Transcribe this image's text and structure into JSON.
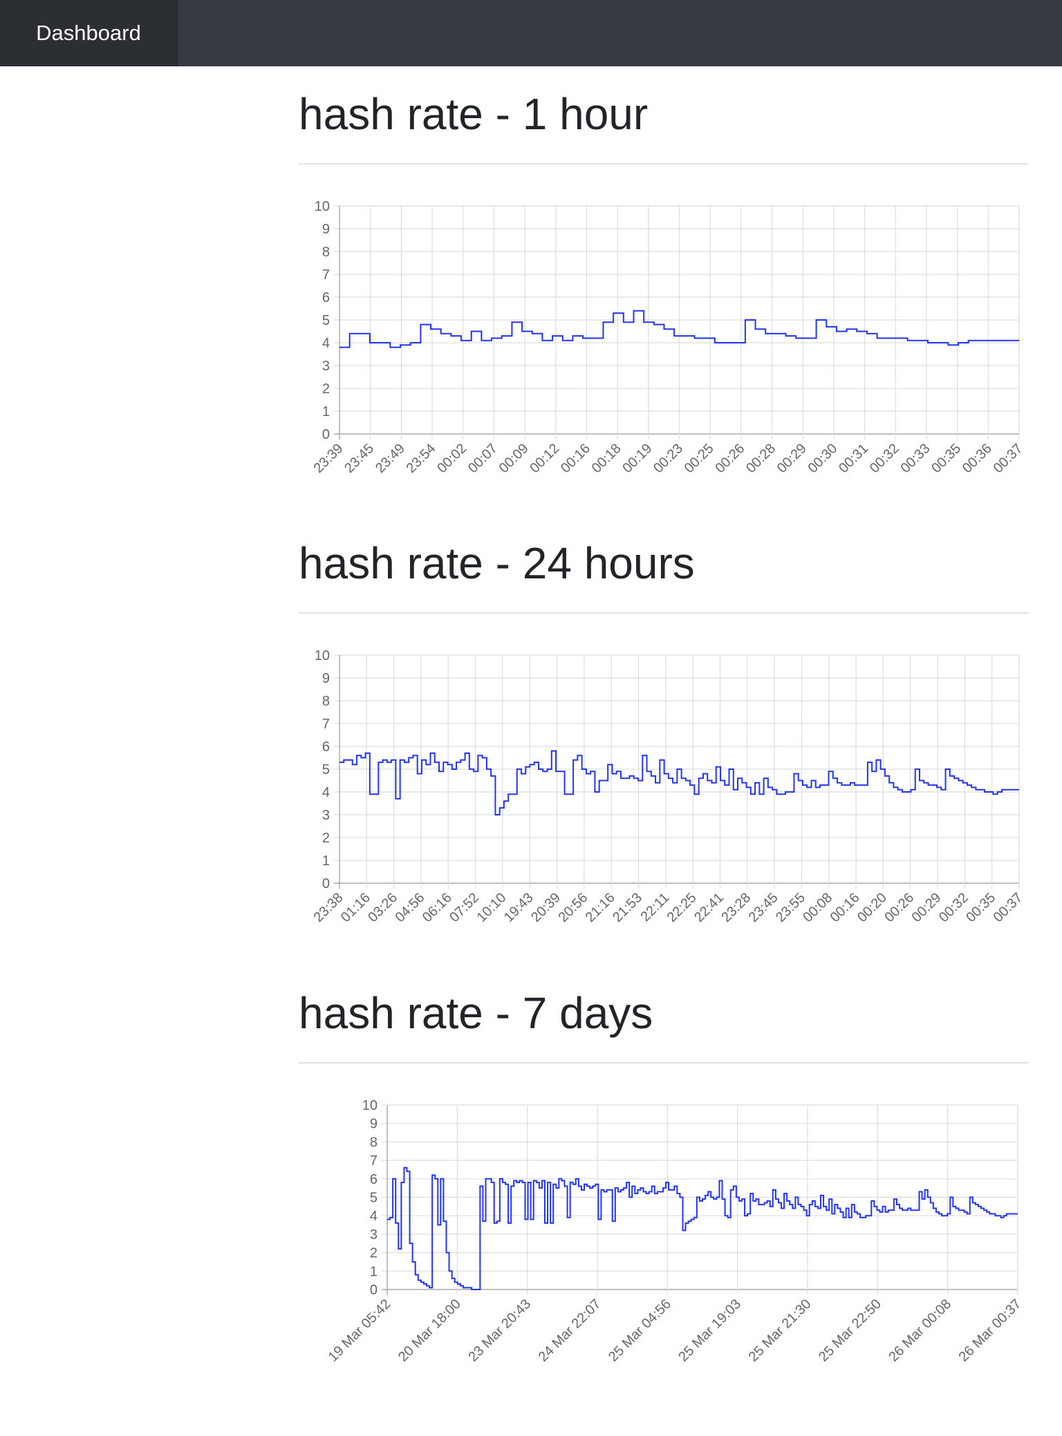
{
  "navbar": {
    "brand": "Dashboard"
  },
  "colors": {
    "navbar_bg": "#343a40",
    "brand_bg": "#2b2f33",
    "line": "#2233ee",
    "grid": "#dddddd",
    "axis_text": "#666666"
  },
  "sections": [
    {
      "title": "hash rate - 1 hour"
    },
    {
      "title": "hash rate - 24 hours"
    },
    {
      "title": "hash rate - 7 days"
    }
  ],
  "chart_data": [
    {
      "type": "line",
      "stepped": true,
      "grid": true,
      "ylim": [
        0,
        10
      ],
      "y_ticks": [
        "0",
        "1",
        "2",
        "3",
        "4",
        "5",
        "6",
        "7",
        "8",
        "9",
        "10"
      ],
      "x_tick_labels": [
        "23:39",
        "23:45",
        "23:49",
        "23:54",
        "00:02",
        "00:07",
        "00:09",
        "00:12",
        "00:16",
        "00:18",
        "00:19",
        "00:23",
        "00:25",
        "00:26",
        "00:28",
        "00:29",
        "00:30",
        "00:31",
        "00:32",
        "00:33",
        "00:35",
        "00:36",
        "00:37"
      ],
      "series": [
        {
          "values": [
            3.8,
            4.4,
            4.4,
            4.0,
            4.0,
            3.8,
            3.9,
            4.0,
            4.8,
            4.6,
            4.4,
            4.3,
            4.1,
            4.5,
            4.1,
            4.2,
            4.3,
            4.9,
            4.5,
            4.4,
            4.1,
            4.3,
            4.1,
            4.3,
            4.2,
            4.2,
            4.9,
            5.3,
            4.9,
            5.4,
            4.9,
            4.8,
            4.6,
            4.3,
            4.3,
            4.2,
            4.2,
            4.0,
            4.0,
            4.0,
            5.0,
            4.6,
            4.4,
            4.4,
            4.3,
            4.2,
            4.2,
            5.0,
            4.7,
            4.5,
            4.6,
            4.5,
            4.4,
            4.2,
            4.2,
            4.2,
            4.1,
            4.1,
            4.0,
            4.0,
            3.9,
            4.0,
            4.1,
            4.1,
            4.1,
            4.1,
            4.1
          ]
        }
      ]
    },
    {
      "type": "line",
      "stepped": true,
      "grid": true,
      "ylim": [
        0,
        10
      ],
      "y_ticks": [
        "0",
        "1",
        "2",
        "3",
        "4",
        "5",
        "6",
        "7",
        "8",
        "9",
        "10"
      ],
      "x_tick_labels": [
        "23:38",
        "01:16",
        "03:26",
        "04:56",
        "06:16",
        "07:52",
        "10:10",
        "19:43",
        "20:39",
        "20:56",
        "21:16",
        "21:53",
        "22:11",
        "22:25",
        "22:41",
        "23:28",
        "23:45",
        "23:55",
        "00:08",
        "00:16",
        "00:20",
        "00:26",
        "00:29",
        "00:32",
        "00:35",
        "00:37"
      ],
      "series": [
        {
          "values": [
            5.3,
            5.4,
            5.4,
            5.2,
            5.6,
            5.5,
            5.7,
            3.9,
            3.9,
            5.3,
            5.4,
            5.3,
            5.4,
            3.7,
            5.4,
            5.3,
            5.5,
            5.6,
            4.8,
            5.4,
            5.2,
            5.7,
            5.3,
            4.9,
            5.3,
            5.2,
            5.0,
            5.3,
            5.4,
            5.7,
            5.0,
            4.9,
            5.6,
            5.5,
            5.0,
            4.7,
            3.0,
            3.3,
            3.6,
            3.9,
            3.9,
            5.0,
            4.8,
            5.1,
            5.2,
            5.3,
            5.0,
            4.9,
            5.0,
            5.8,
            4.9,
            4.9,
            3.9,
            3.9,
            5.4,
            5.6,
            5.0,
            4.8,
            4.9,
            4.0,
            4.5,
            4.5,
            5.2,
            4.8,
            4.9,
            4.6,
            4.6,
            4.7,
            4.6,
            4.5,
            5.6,
            4.9,
            4.7,
            4.4,
            5.4,
            4.8,
            4.6,
            4.4,
            5.0,
            4.6,
            4.5,
            4.3,
            3.9,
            4.6,
            4.8,
            4.5,
            4.4,
            5.1,
            4.5,
            4.3,
            5.0,
            4.1,
            4.6,
            4.4,
            4.2,
            3.9,
            4.4,
            3.9,
            4.6,
            4.2,
            4.1,
            3.9,
            3.9,
            4.0,
            4.0,
            4.8,
            4.5,
            4.3,
            4.2,
            4.5,
            4.2,
            4.3,
            4.3,
            4.9,
            4.6,
            4.4,
            4.3,
            4.3,
            4.4,
            4.3,
            4.3,
            4.3,
            5.3,
            4.9,
            5.4,
            5.0,
            4.7,
            4.4,
            4.2,
            4.1,
            4.0,
            4.0,
            4.1,
            5.0,
            4.5,
            4.4,
            4.3,
            4.3,
            4.2,
            4.1,
            5.0,
            4.7,
            4.6,
            4.5,
            4.4,
            4.3,
            4.2,
            4.1,
            4.1,
            4.0,
            4.0,
            3.9,
            4.0,
            4.1,
            4.1,
            4.1,
            4.1
          ]
        }
      ]
    },
    {
      "type": "line",
      "stepped": true,
      "grid": true,
      "ylim": [
        0,
        10
      ],
      "y_ticks": [
        "0",
        "1",
        "2",
        "3",
        "4",
        "5",
        "6",
        "7",
        "8",
        "9",
        "10"
      ],
      "x_tick_labels": [
        "19 Mar 05:42",
        "20 Mar 18:00",
        "23 Mar 20:43",
        "24 Mar 22:07",
        "25 Mar 04:56",
        "25 Mar 19:03",
        "25 Mar 21:30",
        "25 Mar 22:50",
        "26 Mar 00:08",
        "26 Mar 00:37"
      ],
      "series": [
        {
          "values": [
            3.8,
            3.9,
            6.0,
            3.6,
            2.2,
            5.8,
            6.6,
            6.4,
            2.5,
            1.5,
            0.8,
            0.5,
            0.4,
            0.3,
            0.2,
            0.1,
            6.2,
            6.0,
            3.5,
            6.0,
            3.7,
            2.0,
            1.0,
            0.6,
            0.4,
            0.3,
            0.2,
            0.1,
            0.1,
            0.1,
            0.0,
            0.0,
            0.0,
            5.6,
            3.7,
            6.0,
            6.0,
            5.8,
            3.6,
            3.7,
            6.0,
            5.8,
            5.7,
            3.6,
            5.6,
            5.9,
            5.8,
            5.9,
            5.8,
            3.8,
            5.8,
            3.8,
            5.9,
            5.8,
            5.5,
            5.9,
            3.6,
            5.8,
            3.6,
            5.7,
            5.5,
            6.0,
            5.9,
            5.6,
            3.9,
            5.8,
            5.7,
            6.0,
            5.6,
            5.4,
            5.7,
            5.6,
            5.5,
            5.6,
            5.7,
            3.8,
            5.4,
            5.3,
            5.4,
            5.4,
            3.7,
            5.5,
            5.3,
            5.4,
            5.5,
            5.8,
            5.0,
            5.6,
            5.2,
            5.4,
            5.5,
            5.3,
            5.2,
            5.3,
            5.6,
            5.2,
            5.3,
            5.3,
            5.5,
            5.8,
            5.4,
            5.4,
            5.6,
            5.2,
            5.0,
            3.2,
            3.6,
            3.7,
            3.8,
            3.9,
            5.0,
            4.8,
            4.9,
            5.1,
            5.3,
            5.0,
            4.9,
            5.0,
            5.9,
            4.9,
            4.0,
            3.9,
            5.4,
            5.6,
            5.0,
            4.8,
            4.9,
            4.0,
            4.1,
            5.2,
            4.8,
            4.9,
            4.6,
            4.6,
            4.7,
            4.8,
            4.5,
            5.4,
            4.9,
            4.7,
            4.4,
            5.2,
            4.8,
            4.6,
            4.4,
            5.0,
            4.6,
            4.5,
            4.3,
            4.0,
            4.6,
            4.8,
            4.5,
            4.4,
            5.1,
            4.5,
            4.3,
            4.9,
            4.1,
            4.6,
            4.4,
            4.2,
            3.9,
            4.4,
            3.9,
            4.6,
            4.2,
            4.1,
            3.9,
            3.9,
            4.0,
            4.0,
            4.8,
            4.5,
            4.3,
            4.2,
            4.5,
            4.2,
            4.3,
            4.3,
            4.9,
            4.6,
            4.4,
            4.3,
            4.3,
            4.4,
            4.3,
            4.3,
            4.3,
            5.3,
            4.9,
            5.4,
            5.0,
            4.7,
            4.4,
            4.2,
            4.1,
            4.0,
            4.0,
            4.1,
            5.0,
            4.5,
            4.4,
            4.3,
            4.3,
            4.2,
            4.1,
            5.0,
            4.7,
            4.6,
            4.5,
            4.4,
            4.3,
            4.2,
            4.1,
            4.1,
            4.0,
            4.0,
            3.9,
            4.0,
            4.1,
            4.1,
            4.1,
            4.1
          ]
        }
      ]
    }
  ]
}
